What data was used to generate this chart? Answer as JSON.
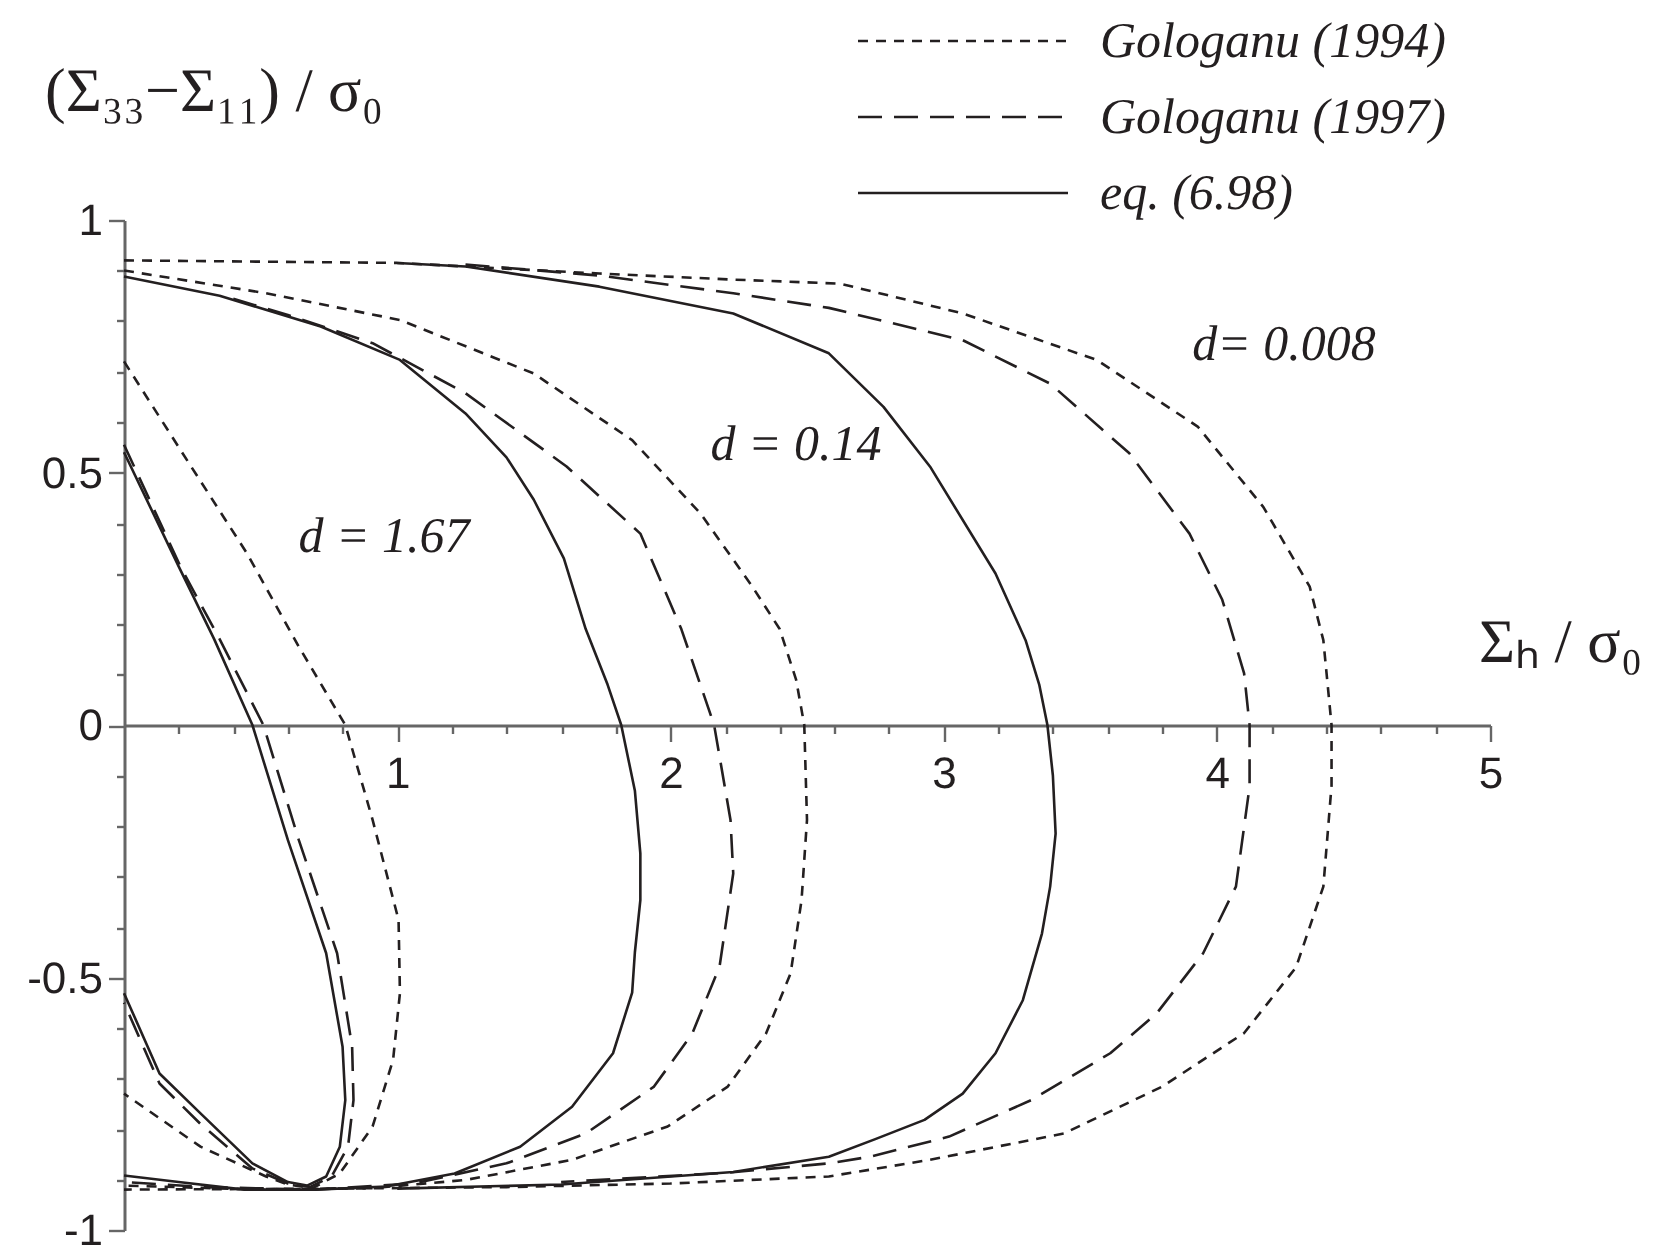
{
  "chart_data": {
    "type": "line",
    "ylabel": "(Σ₃₃−Σ₁₁) / σ₀",
    "xlabel": "Σₕ / σ₀",
    "xlim": [
      0,
      5
    ],
    "ylim": [
      -1,
      1
    ],
    "xticks": [
      {
        "value": 0.2,
        "label": null
      },
      {
        "value": 0.4,
        "label": null
      },
      {
        "value": 0.6,
        "label": null
      },
      {
        "value": 0.8,
        "label": null
      },
      1,
      {
        "value": 1.2,
        "label": null
      },
      {
        "value": 1.4,
        "label": null
      },
      {
        "value": 1.6,
        "label": null
      },
      {
        "value": 1.8,
        "label": null
      },
      2,
      {
        "value": 2.2,
        "label": null
      },
      {
        "value": 2.4,
        "label": null
      },
      {
        "value": 2.6,
        "label": null
      },
      {
        "value": 2.8,
        "label": null
      },
      3,
      {
        "value": 3.2,
        "label": null
      },
      {
        "value": 3.4,
        "label": null
      },
      {
        "value": 3.6,
        "label": null
      },
      {
        "value": 3.8,
        "label": null
      },
      4,
      {
        "value": 4.2,
        "label": null
      },
      {
        "value": 4.4,
        "label": null
      },
      {
        "value": 4.6,
        "label": null
      },
      {
        "value": 4.8,
        "label": null
      },
      5
    ],
    "yticks": [
      -1,
      {
        "value": -0.9,
        "label": null
      },
      {
        "value": -0.8,
        "label": null
      },
      {
        "value": -0.7,
        "label": null
      },
      {
        "value": -0.6,
        "label": null
      },
      -0.5,
      {
        "value": -0.4,
        "label": null
      },
      {
        "value": -0.3,
        "label": null
      },
      {
        "value": -0.2,
        "label": null
      },
      {
        "value": -0.1,
        "label": null
      },
      0,
      {
        "value": 0.1,
        "label": null
      },
      {
        "value": 0.2,
        "label": null
      },
      {
        "value": 0.3,
        "label": null
      },
      {
        "value": 0.4,
        "label": null
      },
      0.5,
      {
        "value": 0.6,
        "label": null
      },
      {
        "value": 0.7,
        "label": null
      },
      {
        "value": 0.8,
        "label": null
      },
      {
        "value": 0.9,
        "label": null
      },
      1
    ],
    "legend": "top right",
    "annotations": [
      "d = 1.67",
      "d = 0.14",
      "d= 0.008"
    ],
    "series": [
      {
        "name": "Gologanu (1994)",
        "color": "#231f20",
        "line_style": "dotted",
        "x": [
          0,
          1.0,
          1.74,
          2.23,
          2.62,
          3.07,
          3.56,
          3.93,
          4.17,
          4.34,
          4.39,
          4.42,
          4.42,
          4.39,
          4.29,
          4.1,
          3.8,
          3.44,
          2.95,
          2.58,
          2.0,
          1.4,
          0.8,
          0
        ],
        "values": [
          0.92,
          0.915,
          0.894,
          0.882,
          0.874,
          0.815,
          0.723,
          0.591,
          0.432,
          0.274,
          0.168,
          0,
          -0.12,
          -0.32,
          -0.48,
          -0.61,
          -0.716,
          -0.809,
          -0.861,
          -0.894,
          -0.908,
          -0.915,
          -0.918,
          -0.92
        ]
      },
      {
        "color": "#231f20",
        "line_style": "dotted",
        "x": [
          0,
          0.52,
          1.01,
          1.5,
          1.86,
          2.11,
          2.3,
          2.4,
          2.46,
          2.49,
          2.5,
          2.48,
          2.44,
          2.35,
          2.21,
          1.99,
          1.64,
          1.25,
          0.91,
          0.5,
          0
        ],
        "values": [
          0.9,
          0.855,
          0.802,
          0.696,
          0.564,
          0.419,
          0.274,
          0.19,
          0.09,
          0,
          -0.188,
          -0.347,
          -0.492,
          -0.611,
          -0.716,
          -0.795,
          -0.861,
          -0.901,
          -0.917,
          -0.92,
          -0.912
        ]
      },
      {
        "color": "#231f20",
        "line_style": "dotted",
        "x": [
          0,
          0.23,
          0.45,
          0.64,
          0.81,
          0.91,
          1.005,
          1.01,
          0.985,
          0.91,
          0.79,
          0.69,
          0.6,
          0.52,
          0.28,
          0
        ],
        "values": [
          0.72,
          0.525,
          0.34,
          0.155,
          0,
          -0.188,
          -0.386,
          -0.531,
          -0.663,
          -0.795,
          -0.888,
          -0.917,
          -0.91,
          -0.894,
          -0.835,
          -0.73
        ]
      },
      {
        "name": "Gologanu (1997)",
        "color": "#231f20",
        "line_style": "dashed",
        "x": [
          1.25,
          1.74,
          2.23,
          2.58,
          3.07,
          3.39,
          3.68,
          3.9,
          4.02,
          4.1,
          4.12,
          4.12,
          4.07,
          3.95,
          3.78,
          3.61,
          3.32,
          3.02,
          2.73,
          2.58,
          2.2,
          1.6
        ],
        "values": [
          0.912,
          0.89,
          0.855,
          0.826,
          0.762,
          0.676,
          0.538,
          0.379,
          0.248,
          0.102,
          0,
          -0.122,
          -0.32,
          -0.452,
          -0.571,
          -0.65,
          -0.743,
          -0.815,
          -0.855,
          -0.868,
          -0.887,
          -0.905
        ]
      },
      {
        "color": "#231f20",
        "line_style": "dashed",
        "x": [
          0.4,
          0.6,
          0.91,
          1.25,
          1.62,
          1.89,
          2.04,
          2.16,
          2.22,
          2.23,
          2.18,
          2.08,
          1.94,
          1.69,
          1.4,
          1.06,
          0.7,
          0.3,
          0
        ],
        "values": [
          0.844,
          0.812,
          0.756,
          0.657,
          0.512,
          0.379,
          0.19,
          0,
          -0.188,
          -0.294,
          -0.478,
          -0.611,
          -0.716,
          -0.809,
          -0.868,
          -0.908,
          -0.92,
          -0.915,
          -0.905
        ]
      },
      {
        "color": "#231f20",
        "line_style": "dashed",
        "x": [
          0,
          0.21,
          0.35,
          0.51,
          0.64,
          0.78,
          0.835,
          0.84,
          0.82,
          0.76,
          0.68,
          0.6,
          0.47,
          0.28,
          0.13,
          0
        ],
        "values": [
          0.555,
          0.31,
          0.17,
          0,
          -0.228,
          -0.452,
          -0.637,
          -0.743,
          -0.835,
          -0.894,
          -0.915,
          -0.908,
          -0.878,
          -0.79,
          -0.71,
          -0.55
        ]
      },
      {
        "name": "eq. (6.98)",
        "color": "#231f20",
        "line_style": "solid",
        "x": [
          1.0,
          1.25,
          1.74,
          2.23,
          2.58,
          2.78,
          2.95,
          3.19,
          3.3,
          3.35,
          3.38,
          3.4,
          3.41,
          3.39,
          3.36,
          3.29,
          3.19,
          3.07,
          2.93,
          2.75,
          2.58,
          2.23,
          1.6,
          1.0
        ],
        "values": [
          0.915,
          0.908,
          0.868,
          0.815,
          0.736,
          0.63,
          0.512,
          0.3,
          0.168,
          0.08,
          0,
          -0.1,
          -0.215,
          -0.32,
          -0.413,
          -0.545,
          -0.65,
          -0.73,
          -0.782,
          -0.82,
          -0.855,
          -0.885,
          -0.91,
          -0.918
        ]
      },
      {
        "color": "#231f20",
        "line_style": "solid",
        "x": [
          0,
          0.35,
          0.72,
          1.01,
          1.25,
          1.4,
          1.5,
          1.61,
          1.69,
          1.77,
          1.82,
          1.87,
          1.89,
          1.89,
          1.87,
          1.86,
          1.79,
          1.64,
          1.45,
          1.21,
          0.96,
          0.7,
          0.44,
          0.2,
          0
        ],
        "values": [
          0.888,
          0.85,
          0.789,
          0.723,
          0.617,
          0.53,
          0.446,
          0.33,
          0.19,
          0.08,
          0,
          -0.13,
          -0.254,
          -0.347,
          -0.45,
          -0.53,
          -0.65,
          -0.756,
          -0.835,
          -0.888,
          -0.914,
          -0.92,
          -0.92,
          -0.905,
          -0.892
        ]
      },
      {
        "color": "#231f20",
        "line_style": "solid",
        "x": [
          0,
          0.2,
          0.33,
          0.47,
          0.6,
          0.74,
          0.8,
          0.81,
          0.79,
          0.74,
          0.67,
          0.6,
          0.47,
          0.28,
          0.13,
          0
        ],
        "values": [
          0.54,
          0.314,
          0.17,
          0,
          -0.228,
          -0.452,
          -0.637,
          -0.743,
          -0.835,
          -0.894,
          -0.912,
          -0.905,
          -0.868,
          -0.769,
          -0.69,
          -0.531
        ]
      }
    ]
  }
}
